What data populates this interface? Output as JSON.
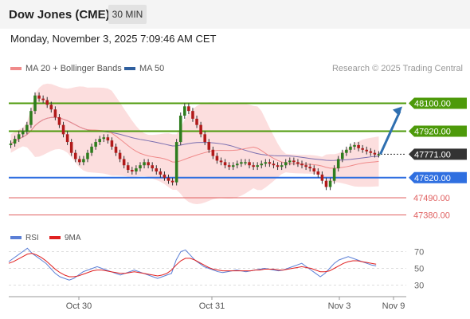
{
  "header": {
    "title": "Dow Jones (CME)",
    "interval": "30 MIN",
    "datetime": "Monday, November 3, 2025 7:09:46 AM CET",
    "copyright": "Research © 2025 Trading Central"
  },
  "legend": [
    {
      "label": "MA 20 + Bollinger Bands",
      "color": "#f08a8a"
    },
    {
      "label": "MA 50",
      "color": "#2f5f9e"
    }
  ],
  "rsi_legend": [
    {
      "label": "RSI",
      "color": "#5b7fd6"
    },
    {
      "label": "9MA",
      "color": "#e02020"
    }
  ],
  "colors": {
    "resistance": "#4d9a0a",
    "support": "#2f6fe0",
    "minor_support": "#e06060",
    "current": "#333333",
    "bollinger_fill": "#fbd3d3",
    "ma20": "#f08a8a",
    "ma50": "#7b6fb0",
    "candle_up": "#2e7d1e",
    "candle_down": "#b11a1a",
    "arrow": "#2f6fb0"
  },
  "chart_data": {
    "type": "candlestick",
    "symbol": "Dow Jones (CME)",
    "timeframe": "30 MIN",
    "x_tick_labels": [
      "Oct 30",
      "Oct 31",
      "Nov 3",
      "Nov 9"
    ],
    "ylim": [
      47300,
      48200
    ],
    "current_price": 47771,
    "levels": [
      {
        "label": "48100.00",
        "value": 48100,
        "kind": "resistance"
      },
      {
        "label": "47920.00",
        "value": 47920,
        "kind": "resistance"
      },
      {
        "label": "47771.00",
        "value": 47771,
        "kind": "current"
      },
      {
        "label": "47620.00",
        "value": 47620,
        "kind": "support"
      },
      {
        "label": "47490.00",
        "value": 47490,
        "kind": "minor_support"
      },
      {
        "label": "47380.00",
        "value": 47380,
        "kind": "minor_support"
      }
    ],
    "closes": [
      47840,
      47870,
      47900,
      47920,
      47960,
      48050,
      48150,
      48130,
      48120,
      48090,
      48060,
      48010,
      47960,
      47900,
      47850,
      47780,
      47740,
      47720,
      47740,
      47780,
      47820,
      47850,
      47870,
      47880,
      47860,
      47820,
      47780,
      47740,
      47700,
      47670,
      47660,
      47680,
      47700,
      47720,
      47700,
      47680,
      47660,
      47640,
      47620,
      47600,
      47590,
      47850,
      48020,
      48080,
      48050,
      48000,
      47960,
      47900,
      47850,
      47800,
      47760,
      47730,
      47720,
      47700,
      47690,
      47700,
      47710,
      47720,
      47720,
      47700,
      47690,
      47700,
      47710,
      47720,
      47710,
      47700,
      47690,
      47700,
      47720,
      47730,
      47720,
      47710,
      47700,
      47690,
      47680,
      47660,
      47640,
      47600,
      47560,
      47600,
      47680,
      47740,
      47780,
      47800,
      47820,
      47830,
      47810,
      47800,
      47790,
      47780,
      47770,
      47771
    ],
    "projection_to": 48100,
    "rsi": {
      "ylim": [
        20,
        80
      ],
      "levels": [
        70,
        50,
        30
      ],
      "values": [
        58,
        62,
        66,
        70,
        74,
        68,
        64,
        60,
        56,
        50,
        44,
        40,
        38,
        36,
        38,
        42,
        46,
        48,
        50,
        52,
        50,
        48,
        46,
        44,
        42,
        44,
        46,
        48,
        46,
        44,
        42,
        40,
        38,
        40,
        42,
        44,
        60,
        70,
        72,
        66,
        60,
        56,
        52,
        50,
        48,
        46,
        45,
        46,
        47,
        48,
        47,
        46,
        47,
        48,
        49,
        50,
        49,
        48,
        47,
        48,
        50,
        52,
        54,
        56,
        52,
        48,
        44,
        40,
        44,
        50,
        56,
        60,
        62,
        64,
        62,
        60,
        58,
        56,
        54,
        53
      ],
      "ma9": [
        56,
        58,
        61,
        64,
        67,
        68,
        66,
        63,
        59,
        54,
        49,
        45,
        42,
        40,
        40,
        41,
        43,
        45,
        47,
        48,
        48,
        47,
        46,
        45,
        44,
        44,
        45,
        46,
        45,
        44,
        43,
        42,
        41,
        42,
        44,
        48,
        54,
        59,
        62,
        62,
        60,
        57,
        54,
        51,
        49,
        48,
        47,
        47,
        47,
        47,
        47,
        47,
        47,
        48,
        48,
        49,
        49,
        49,
        48,
        48,
        49,
        50,
        51,
        52,
        51,
        50,
        48,
        46,
        46,
        47,
        50,
        53,
        56,
        58,
        59,
        59,
        58,
        57,
        56,
        55
      ]
    }
  }
}
